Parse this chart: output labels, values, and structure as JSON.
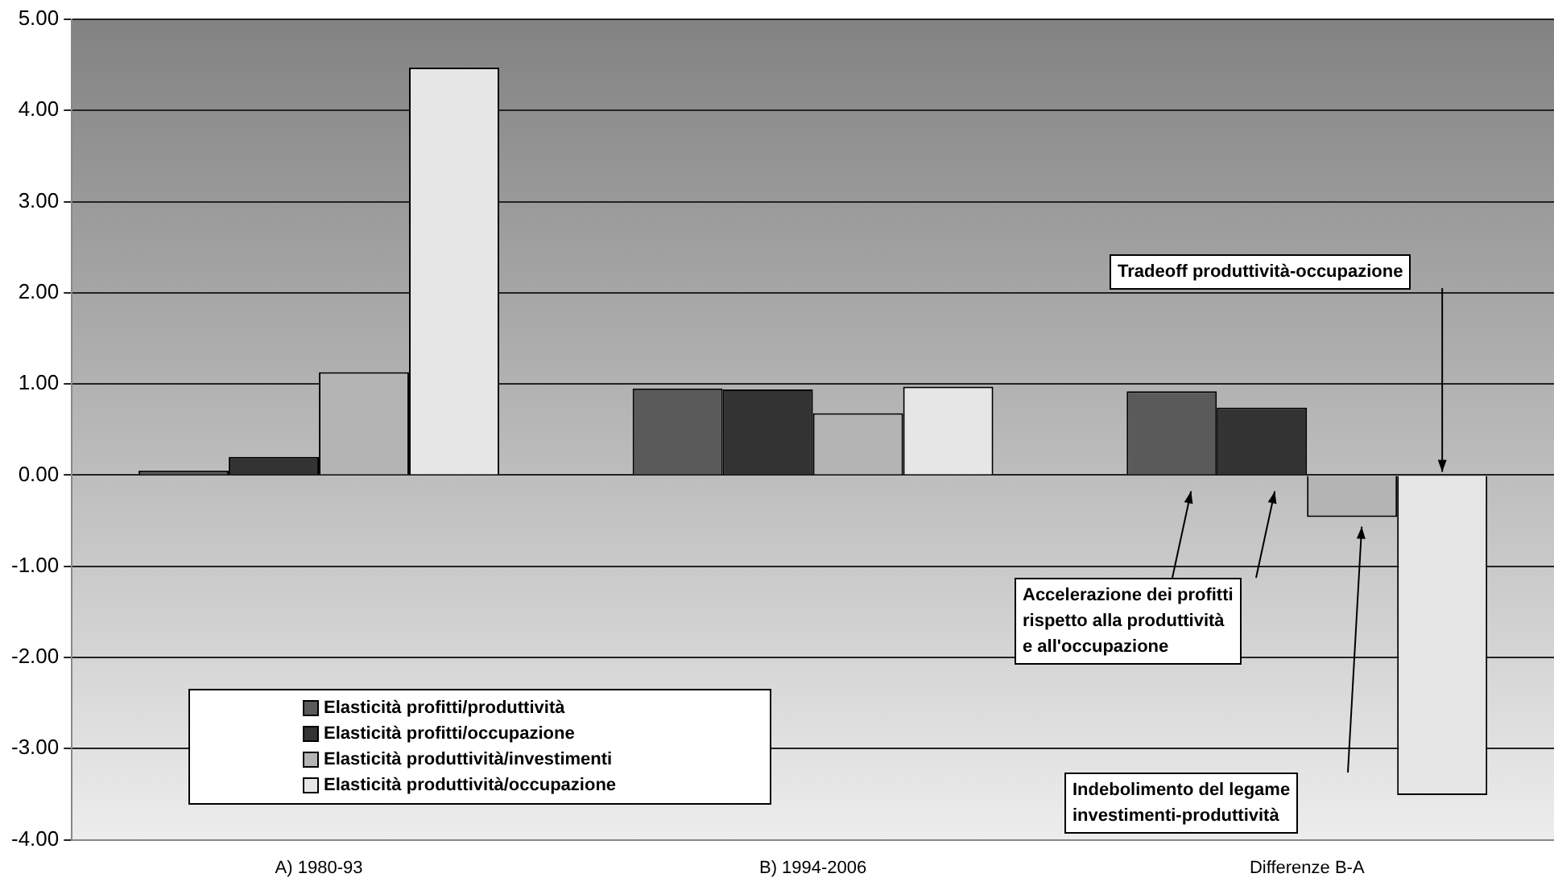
{
  "chart_data": {
    "type": "bar",
    "categories": [
      "A) 1980-93",
      "B) 1994-2006",
      "Differenze B-A"
    ],
    "series": [
      {
        "name": "Elasticità profitti/produttività",
        "color": "#5a5a5a",
        "values": [
          0.05,
          0.95,
          0.92
        ]
      },
      {
        "name": "Elasticità profitti/occupazione",
        "color": "#333333",
        "values": [
          0.2,
          0.94,
          0.74
        ]
      },
      {
        "name": "Elasticità produttività/investimenti",
        "color": "#b4b4b4",
        "values": [
          1.13,
          0.68,
          -0.46
        ]
      },
      {
        "name": "Elasticità produttività/occupazione",
        "color": "#e6e6e6",
        "values": [
          4.47,
          0.97,
          -3.51
        ]
      }
    ],
    "ylim": [
      -4,
      5
    ],
    "yticks": [
      {
        "value": -4,
        "label": "-4.00"
      },
      {
        "value": -3,
        "label": "-3.00"
      },
      {
        "value": -2,
        "label": "-2.00"
      },
      {
        "value": -1,
        "label": "-1.00"
      },
      {
        "value": 0,
        "label": "0.00"
      },
      {
        "value": 1,
        "label": "1.00"
      },
      {
        "value": 2,
        "label": "2.00"
      },
      {
        "value": 3,
        "label": "3.00"
      },
      {
        "value": 4,
        "label": "4.00"
      },
      {
        "value": 5,
        "label": "5.00"
      }
    ],
    "grid": "y",
    "legend": "bottom left",
    "annotations": [
      "Tradeoff produttività-occupazione",
      "Accelerazione dei profitti\nrispetto alla produttività\ne all'occupazione",
      "Indebolimento del legame\ninvestimenti-produttività"
    ]
  }
}
